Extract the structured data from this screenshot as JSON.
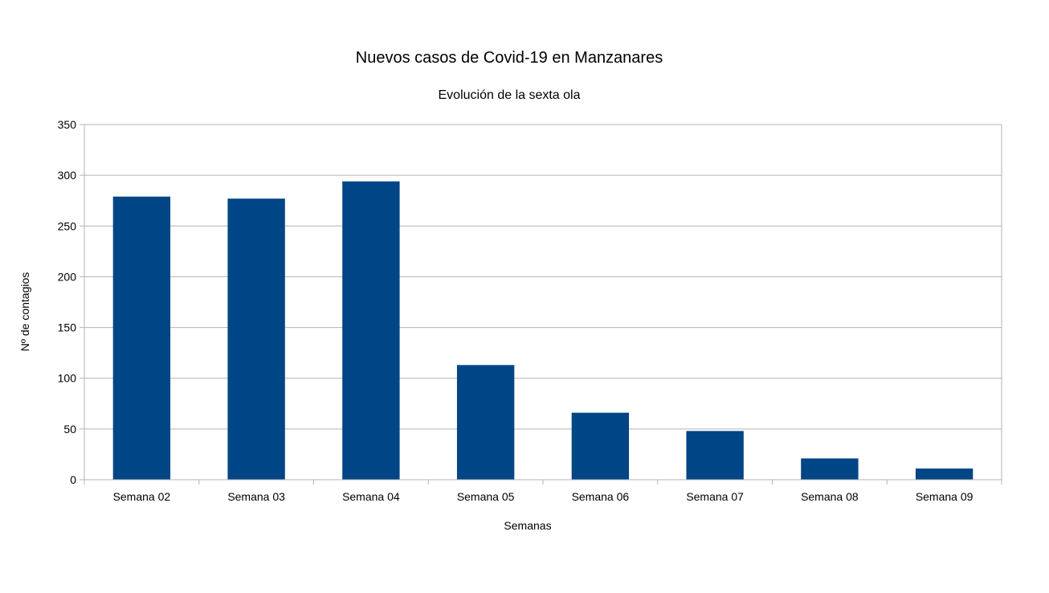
{
  "chart_data": {
    "type": "bar",
    "title": "Nuevos casos de Covid-19 en Manzanares",
    "subtitle": "Evolución de la sexta ola",
    "xlabel": "Semanas",
    "ylabel": "Nº de contagios",
    "categories": [
      "Semana 02",
      "Semana 03",
      "Semana 04",
      "Semana 05",
      "Semana 06",
      "Semana 07",
      "Semana 08",
      "Semana 09"
    ],
    "values": [
      279,
      277,
      294,
      113,
      66,
      48,
      21,
      11
    ],
    "ylim": [
      0,
      350
    ],
    "yticks": [
      0,
      50,
      100,
      150,
      200,
      250,
      300,
      350
    ],
    "grid": true,
    "legend": "none",
    "colors": {
      "bar": "#004586",
      "grid": "#b3b3b3",
      "axis": "#b3b3b3"
    }
  }
}
